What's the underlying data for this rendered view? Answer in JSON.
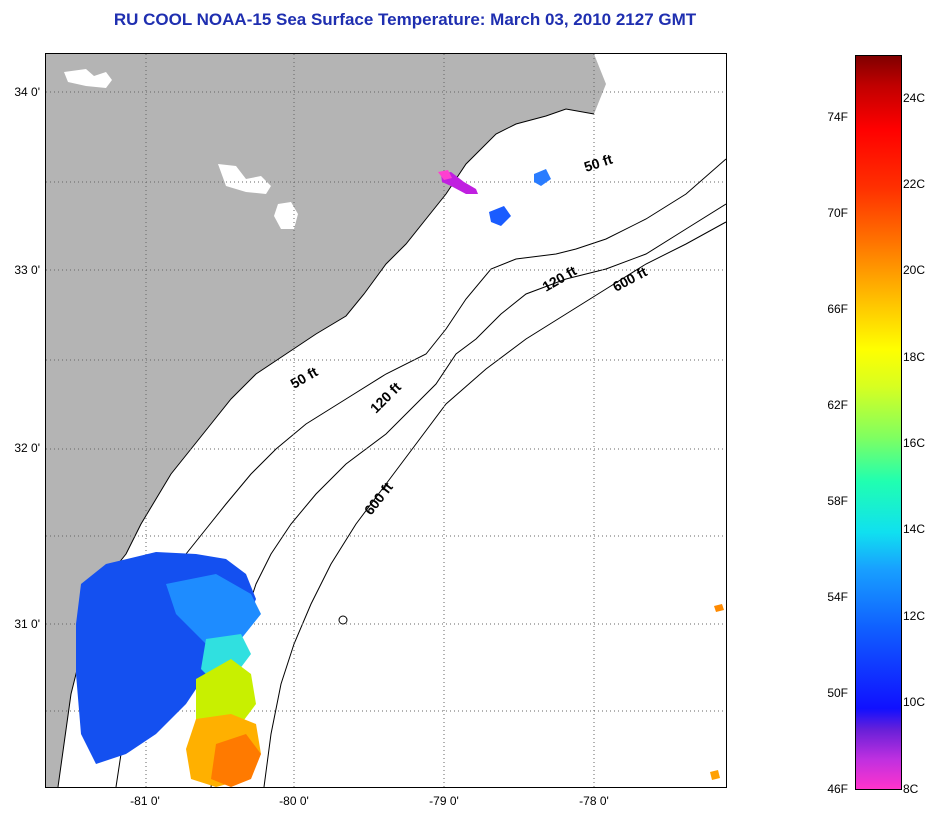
{
  "title": "RU COOL  NOAA-15  Sea Surface Temperature:  March 03, 2010 2127 GMT",
  "latitude_labels": [
    "34 0'",
    "33 0'",
    "32 0'",
    "31 0'"
  ],
  "longitude_labels": [
    "-81 0'",
    "-80 0'",
    "-79 0'",
    "-78 0'"
  ],
  "contour_labels": {
    "c50_north": "50 ft",
    "c120_north": "120 ft",
    "c600_north": "600 ft",
    "c50_south": "50 ft",
    "c120_south": "120 ft",
    "c600_south": "600 ft"
  },
  "colorbar": {
    "fahrenheit_labels": [
      "74F",
      "70F",
      "66F",
      "62F",
      "58F",
      "54F",
      "50F",
      "46F"
    ],
    "celsius_labels": [
      "24C",
      "22C",
      "20C",
      "18C",
      "16C",
      "14C",
      "12C",
      "10C",
      "8C"
    ]
  },
  "colors": {
    "land": "#b4b4b4",
    "title": "#1f2fb0"
  }
}
